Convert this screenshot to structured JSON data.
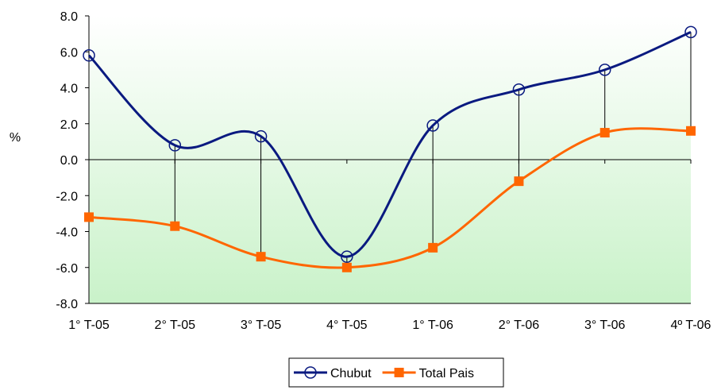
{
  "chart_data": {
    "type": "line",
    "categories": [
      "1° T-05",
      "2° T-05",
      "3° T-05",
      "4° T-05",
      "1° T-06",
      "2° T-06",
      "3° T-06",
      "4º T-06"
    ],
    "series": [
      {
        "name": "Chubut",
        "values": [
          5.8,
          0.8,
          1.3,
          -5.4,
          1.9,
          3.9,
          5.0,
          7.1
        ],
        "color": "#0a1a80",
        "marker": "circle-open"
      },
      {
        "name": "Total Pais",
        "values": [
          -3.2,
          -3.7,
          -5.4,
          -6.0,
          -4.9,
          -1.2,
          1.5,
          1.6
        ],
        "color": "#ff6600",
        "marker": "square"
      }
    ],
    "ylabel": "%",
    "xlabel": "",
    "title": "",
    "ylim": [
      -8.0,
      8.0
    ],
    "ytick_step": 2.0,
    "ytick_labels": [
      "-8.0",
      "-6.0",
      "-4.0",
      "-2.0",
      "0.0",
      "2.0",
      "4.0",
      "6.0",
      "8.0"
    ],
    "smooth": true,
    "high_low_lines": true,
    "plot_background": "gradient-green-to-white",
    "legend_position": "bottom-center"
  }
}
